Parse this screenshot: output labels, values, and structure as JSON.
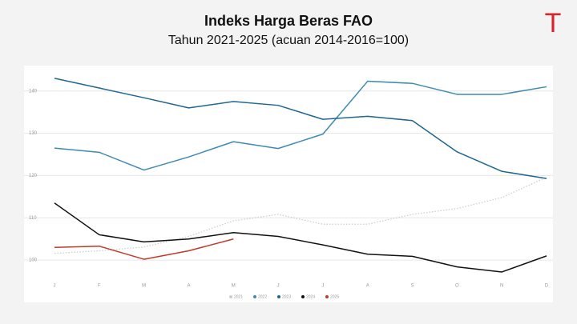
{
  "logo": "T",
  "chart_data": {
    "type": "line",
    "title": "Indeks Harga Beras FAO",
    "subtitle": "Tahun 2021-2025 (acuan 2014-2016=100)",
    "categories": [
      "J",
      "F",
      "M",
      "A",
      "M",
      "J",
      "J",
      "A",
      "S",
      "O",
      "N",
      "D"
    ],
    "series": [
      {
        "name": "2021",
        "color": "#c9cfd4",
        "line_style": "dotted",
        "values": [
          101.6,
          102.2,
          103.1,
          105.6,
          109.3,
          110.8,
          108.5,
          108.5,
          110.8,
          112.2,
          114.8,
          119.6
        ]
      },
      {
        "name": "2022",
        "color": "#3d8ab3",
        "line_style": "solid",
        "values": [
          126.5,
          125.5,
          121.3,
          124.4,
          128,
          126.4,
          129.8,
          142.3,
          141.8,
          139.2,
          139.2,
          141
        ]
      },
      {
        "name": "2023",
        "color": "#1f6690",
        "line_style": "solid",
        "values": [
          143,
          140.7,
          138.4,
          136,
          137.5,
          136.6,
          133.3,
          134,
          133,
          125.6,
          121,
          119.3
        ]
      },
      {
        "name": "2024",
        "color": "#111111",
        "line_style": "solid",
        "values": [
          113.5,
          106,
          104.3,
          105,
          106.5,
          105.6,
          103.6,
          101.4,
          100.9,
          98.4,
          97.2,
          101
        ]
      },
      {
        "name": "2025",
        "color": "#c0392b",
        "line_style": "solid",
        "values": [
          103,
          103.3,
          100.2,
          102.2,
          105,
          null,
          null,
          null,
          null,
          null,
          null,
          null
        ]
      }
    ],
    "ylim": [
      90,
      146
    ],
    "yticks": [
      100,
      110,
      120,
      130,
      140
    ],
    "grid": true,
    "legend": "bottom"
  }
}
